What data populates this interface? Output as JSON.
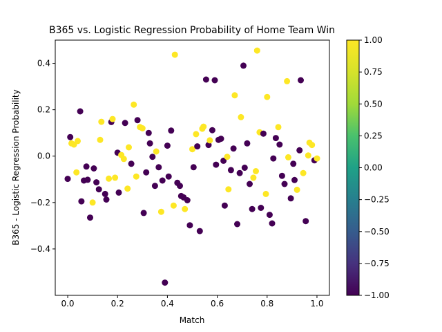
{
  "chart_data": {
    "type": "scatter",
    "title": "B365 vs. Logistic Regression Probability of Home Team Win",
    "xlabel": "Match",
    "ylabel": "B365 - Logistic Regression Probability",
    "xlim": [
      -0.05,
      1.05
    ],
    "ylim": [
      -0.6,
      0.5
    ],
    "xticks": [
      0.0,
      0.2,
      0.4,
      0.6,
      0.8,
      1.0
    ],
    "xtick_labels": [
      "0.0",
      "0.2",
      "0.4",
      "0.6",
      "0.8",
      "1.0"
    ],
    "yticks": [
      -0.4,
      -0.2,
      0.0,
      0.2,
      0.4
    ],
    "ytick_labels": [
      "−0.4",
      "−0.2",
      "0.0",
      "0.2",
      "0.4"
    ],
    "grid": false,
    "colormap": "viridis",
    "colorbar": {
      "range": [
        -1.0,
        1.0
      ],
      "ticks": [
        1.0,
        0.75,
        0.5,
        0.25,
        0.0,
        -0.25,
        -0.5,
        -0.75,
        -1.0
      ],
      "tick_labels": [
        "1.00",
        "0.75",
        "0.50",
        "0.25",
        "0.00",
        "−0.25",
        "−0.50",
        "−0.75",
        "−1.00"
      ]
    },
    "colors": {
      "win": "#fde725",
      "loss": "#440154"
    },
    "points": [
      {
        "x": 0.0,
        "y": -0.098,
        "c": -1
      },
      {
        "x": 0.01,
        "y": 0.082,
        "c": -1
      },
      {
        "x": 0.015,
        "y": 0.055,
        "c": 1
      },
      {
        "x": 0.025,
        "y": 0.05,
        "c": 1
      },
      {
        "x": 0.035,
        "y": -0.07,
        "c": 1
      },
      {
        "x": 0.04,
        "y": 0.065,
        "c": 1
      },
      {
        "x": 0.05,
        "y": 0.193,
        "c": -1
      },
      {
        "x": 0.055,
        "y": -0.195,
        "c": -1
      },
      {
        "x": 0.065,
        "y": -0.105,
        "c": -1
      },
      {
        "x": 0.075,
        "y": -0.045,
        "c": -1
      },
      {
        "x": 0.08,
        "y": -0.102,
        "c": -1
      },
      {
        "x": 0.09,
        "y": -0.265,
        "c": -1
      },
      {
        "x": 0.1,
        "y": -0.2,
        "c": 1
      },
      {
        "x": 0.105,
        "y": -0.053,
        "c": -1
      },
      {
        "x": 0.115,
        "y": -0.113,
        "c": -1
      },
      {
        "x": 0.125,
        "y": -0.143,
        "c": -1
      },
      {
        "x": 0.13,
        "y": 0.07,
        "c": 1
      },
      {
        "x": 0.135,
        "y": 0.148,
        "c": 1
      },
      {
        "x": 0.15,
        "y": -0.163,
        "c": -1
      },
      {
        "x": 0.155,
        "y": -0.187,
        "c": -1
      },
      {
        "x": 0.165,
        "y": -0.097,
        "c": 1
      },
      {
        "x": 0.175,
        "y": 0.147,
        "c": -1
      },
      {
        "x": 0.18,
        "y": 0.16,
        "c": 1
      },
      {
        "x": 0.19,
        "y": -0.093,
        "c": 1
      },
      {
        "x": 0.2,
        "y": 0.015,
        "c": -1
      },
      {
        "x": 0.205,
        "y": -0.157,
        "c": -1
      },
      {
        "x": 0.215,
        "y": 0.005,
        "c": 1
      },
      {
        "x": 0.225,
        "y": -0.012,
        "c": 1
      },
      {
        "x": 0.23,
        "y": 0.143,
        "c": -1
      },
      {
        "x": 0.24,
        "y": -0.14,
        "c": 1
      },
      {
        "x": 0.245,
        "y": 0.038,
        "c": 1
      },
      {
        "x": 0.255,
        "y": -0.033,
        "c": -1
      },
      {
        "x": 0.265,
        "y": 0.222,
        "c": 1
      },
      {
        "x": 0.275,
        "y": -0.088,
        "c": 1
      },
      {
        "x": 0.28,
        "y": 0.155,
        "c": -1
      },
      {
        "x": 0.29,
        "y": 0.125,
        "c": 1
      },
      {
        "x": 0.3,
        "y": 0.12,
        "c": 1
      },
      {
        "x": 0.305,
        "y": -0.245,
        "c": -1
      },
      {
        "x": 0.315,
        "y": -0.07,
        "c": -1
      },
      {
        "x": 0.325,
        "y": 0.1,
        "c": -1
      },
      {
        "x": 0.33,
        "y": 0.055,
        "c": -1
      },
      {
        "x": 0.34,
        "y": -0.003,
        "c": -1
      },
      {
        "x": 0.35,
        "y": -0.128,
        "c": -1
      },
      {
        "x": 0.355,
        "y": 0.02,
        "c": 1
      },
      {
        "x": 0.365,
        "y": -0.048,
        "c": -1
      },
      {
        "x": 0.375,
        "y": -0.24,
        "c": 1
      },
      {
        "x": 0.38,
        "y": -0.105,
        "c": -1
      },
      {
        "x": 0.39,
        "y": -0.545,
        "c": -1
      },
      {
        "x": 0.4,
        "y": 0.045,
        "c": -1
      },
      {
        "x": 0.405,
        "y": -0.088,
        "c": -1
      },
      {
        "x": 0.415,
        "y": 0.11,
        "c": -1
      },
      {
        "x": 0.425,
        "y": -0.213,
        "c": 1
      },
      {
        "x": 0.43,
        "y": 0.437,
        "c": 1
      },
      {
        "x": 0.44,
        "y": -0.115,
        "c": -1
      },
      {
        "x": 0.45,
        "y": -0.128,
        "c": -1
      },
      {
        "x": 0.455,
        "y": -0.172,
        "c": -1
      },
      {
        "x": 0.465,
        "y": -0.178,
        "c": -1
      },
      {
        "x": 0.47,
        "y": -0.228,
        "c": 1
      },
      {
        "x": 0.48,
        "y": -0.19,
        "c": -1
      },
      {
        "x": 0.49,
        "y": -0.298,
        "c": -1
      },
      {
        "x": 0.5,
        "y": 0.03,
        "c": 1
      },
      {
        "x": 0.505,
        "y": -0.048,
        "c": -1
      },
      {
        "x": 0.515,
        "y": 0.095,
        "c": 1
      },
      {
        "x": 0.52,
        "y": 0.042,
        "c": -1
      },
      {
        "x": 0.53,
        "y": -0.323,
        "c": -1
      },
      {
        "x": 0.54,
        "y": 0.118,
        "c": 1
      },
      {
        "x": 0.545,
        "y": 0.127,
        "c": 1
      },
      {
        "x": 0.555,
        "y": 0.33,
        "c": -1
      },
      {
        "x": 0.565,
        "y": 0.048,
        "c": -1
      },
      {
        "x": 0.57,
        "y": 0.068,
        "c": 1
      },
      {
        "x": 0.58,
        "y": 0.112,
        "c": -1
      },
      {
        "x": 0.59,
        "y": 0.327,
        "c": -1
      },
      {
        "x": 0.595,
        "y": -0.037,
        "c": -1
      },
      {
        "x": 0.605,
        "y": 0.07,
        "c": -1
      },
      {
        "x": 0.615,
        "y": 0.075,
        "c": -1
      },
      {
        "x": 0.625,
        "y": -0.02,
        "c": -1
      },
      {
        "x": 0.63,
        "y": -0.213,
        "c": -1
      },
      {
        "x": 0.64,
        "y": -0.003,
        "c": 1
      },
      {
        "x": 0.645,
        "y": -0.143,
        "c": 1
      },
      {
        "x": 0.655,
        "y": -0.06,
        "c": -1
      },
      {
        "x": 0.665,
        "y": 0.033,
        "c": -1
      },
      {
        "x": 0.67,
        "y": 0.262,
        "c": 1
      },
      {
        "x": 0.68,
        "y": -0.293,
        "c": -1
      },
      {
        "x": 0.69,
        "y": -0.073,
        "c": -1
      },
      {
        "x": 0.695,
        "y": 0.168,
        "c": 1
      },
      {
        "x": 0.705,
        "y": 0.39,
        "c": -1
      },
      {
        "x": 0.71,
        "y": -0.05,
        "c": -1
      },
      {
        "x": 0.72,
        "y": 0.055,
        "c": -1
      },
      {
        "x": 0.73,
        "y": -0.12,
        "c": -1
      },
      {
        "x": 0.74,
        "y": -0.228,
        "c": -1
      },
      {
        "x": 0.745,
        "y": -0.093,
        "c": 1
      },
      {
        "x": 0.755,
        "y": -0.065,
        "c": 1
      },
      {
        "x": 0.76,
        "y": 0.455,
        "c": 1
      },
      {
        "x": 0.77,
        "y": 0.103,
        "c": 1
      },
      {
        "x": 0.775,
        "y": -0.223,
        "c": -1
      },
      {
        "x": 0.785,
        "y": 0.097,
        "c": -1
      },
      {
        "x": 0.795,
        "y": -0.163,
        "c": 1
      },
      {
        "x": 0.8,
        "y": 0.255,
        "c": 1
      },
      {
        "x": 0.81,
        "y": -0.253,
        "c": -1
      },
      {
        "x": 0.82,
        "y": -0.29,
        "c": -1
      },
      {
        "x": 0.825,
        "y": -0.01,
        "c": -1
      },
      {
        "x": 0.835,
        "y": 0.078,
        "c": -1
      },
      {
        "x": 0.845,
        "y": 0.125,
        "c": 1
      },
      {
        "x": 0.85,
        "y": 0.05,
        "c": -1
      },
      {
        "x": 0.86,
        "y": -0.085,
        "c": -1
      },
      {
        "x": 0.87,
        "y": -0.12,
        "c": -1
      },
      {
        "x": 0.88,
        "y": 0.323,
        "c": 1
      },
      {
        "x": 0.885,
        "y": -0.005,
        "c": 1
      },
      {
        "x": 0.895,
        "y": -0.182,
        "c": -1
      },
      {
        "x": 0.905,
        "y": -0.033,
        "c": -1
      },
      {
        "x": 0.91,
        "y": -0.103,
        "c": -1
      },
      {
        "x": 0.92,
        "y": -0.145,
        "c": 1
      },
      {
        "x": 0.93,
        "y": 0.025,
        "c": -1
      },
      {
        "x": 0.935,
        "y": 0.327,
        "c": -1
      },
      {
        "x": 0.945,
        "y": -0.073,
        "c": 1
      },
      {
        "x": 0.955,
        "y": -0.28,
        "c": -1
      },
      {
        "x": 0.965,
        "y": 0.003,
        "c": 1
      },
      {
        "x": 0.97,
        "y": 0.058,
        "c": 1
      },
      {
        "x": 0.98,
        "y": 0.048,
        "c": 1
      },
      {
        "x": 0.99,
        "y": -0.018,
        "c": -1
      },
      {
        "x": 1.0,
        "y": -0.01,
        "c": 1
      }
    ]
  }
}
